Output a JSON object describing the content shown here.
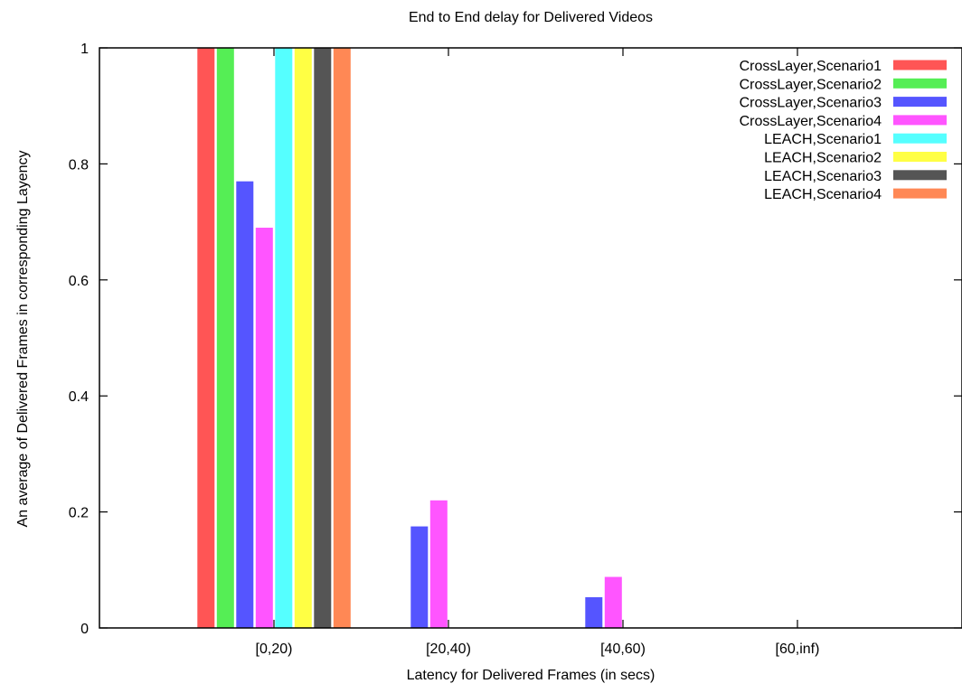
{
  "chart_data": {
    "type": "bar",
    "title": "End to End delay for Delivered Videos",
    "xlabel": "Latency for Delivered Frames (in secs)",
    "ylabel": "An average of Delivered Frames in corresponding Layency",
    "categories": [
      "[0,20)",
      "[20,40)",
      "[40,60)",
      "[60,inf)"
    ],
    "ylim": [
      0,
      1
    ],
    "yticks": [
      0,
      0.2,
      0.4,
      0.6,
      0.8,
      1
    ],
    "ytick_labels": [
      "0",
      "0.2",
      "0.4",
      "0.6",
      "0.8",
      "1"
    ],
    "grid": false,
    "legend_position": "top-right",
    "series": [
      {
        "name": "CrossLayer,Scenario1",
        "color": "#ff5555",
        "values": [
          1,
          0,
          0,
          0
        ]
      },
      {
        "name": "CrossLayer,Scenario2",
        "color": "#55ee55",
        "values": [
          1,
          0,
          0,
          0
        ]
      },
      {
        "name": "CrossLayer,Scenario3",
        "color": "#5555ff",
        "values": [
          0.77,
          0.175,
          0.053,
          0
        ]
      },
      {
        "name": "CrossLayer,Scenario4",
        "color": "#ff55ff",
        "values": [
          0.69,
          0.22,
          0.088,
          0
        ]
      },
      {
        "name": "LEACH,Scenario1",
        "color": "#55ffff",
        "values": [
          1,
          0,
          0,
          0
        ]
      },
      {
        "name": "LEACH,Scenario2",
        "color": "#ffff44",
        "values": [
          1,
          0,
          0,
          0
        ]
      },
      {
        "name": "LEACH,Scenario3",
        "color": "#555555",
        "values": [
          1,
          0,
          0,
          0
        ]
      },
      {
        "name": "LEACH,Scenario4",
        "color": "#ff8855",
        "values": [
          1,
          0,
          0,
          0
        ]
      }
    ]
  }
}
